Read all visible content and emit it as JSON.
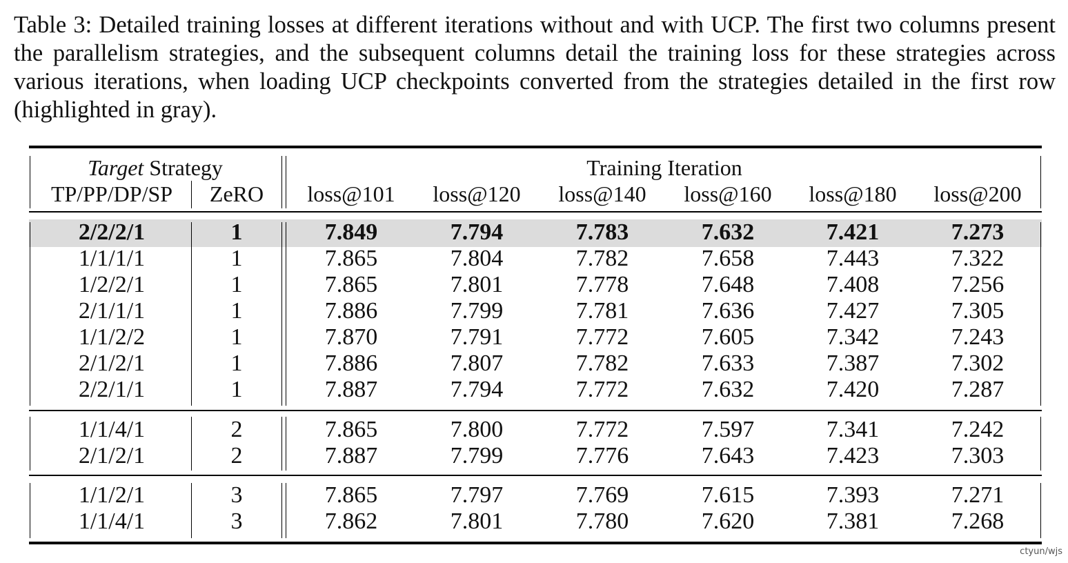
{
  "caption": "Table 3: Detailed training losses at different iterations without and with UCP. The first two columns present the parallelism strategies, and the subsequent columns detail the training loss for these strategies across various iterations, when loading UCP checkpoints converted from the strategies detailed in the first row (highlighted in gray).",
  "header": {
    "group_left_italic": "Target",
    "group_left_rest": " Strategy",
    "group_right": "Training Iteration",
    "columns": [
      "TP/PP/DP/SP",
      "ZeRO",
      "loss@101",
      "loss@120",
      "loss@140",
      "loss@160",
      "loss@180",
      "loss@200"
    ]
  },
  "rows": [
    [
      "2/2/2/1",
      "1",
      "7.849",
      "7.794",
      "7.783",
      "7.632",
      "7.421",
      "7.273"
    ],
    [
      "1/1/1/1",
      "1",
      "7.865",
      "7.804",
      "7.782",
      "7.658",
      "7.443",
      "7.322"
    ],
    [
      "1/2/2/1",
      "1",
      "7.865",
      "7.801",
      "7.778",
      "7.648",
      "7.408",
      "7.256"
    ],
    [
      "2/1/1/1",
      "1",
      "7.886",
      "7.799",
      "7.781",
      "7.636",
      "7.427",
      "7.305"
    ],
    [
      "1/1/2/2",
      "1",
      "7.870",
      "7.791",
      "7.772",
      "7.605",
      "7.342",
      "7.243"
    ],
    [
      "2/1/2/1",
      "1",
      "7.886",
      "7.807",
      "7.782",
      "7.633",
      "7.387",
      "7.302"
    ],
    [
      "2/2/1/1",
      "1",
      "7.887",
      "7.794",
      "7.772",
      "7.632",
      "7.420",
      "7.287"
    ],
    [
      "1/1/4/1",
      "2",
      "7.865",
      "7.800",
      "7.772",
      "7.597",
      "7.341",
      "7.242"
    ],
    [
      "2/1/2/1",
      "2",
      "7.887",
      "7.799",
      "7.776",
      "7.643",
      "7.423",
      "7.303"
    ],
    [
      "1/1/2/1",
      "3",
      "7.865",
      "7.797",
      "7.769",
      "7.615",
      "7.393",
      "7.271"
    ],
    [
      "1/1/4/1",
      "3",
      "7.862",
      "7.801",
      "7.780",
      "7.620",
      "7.381",
      "7.268"
    ]
  ],
  "highlight_row": 0,
  "highlight_color": "#dcdcdc",
  "watermark": "ctyun/wjs"
}
